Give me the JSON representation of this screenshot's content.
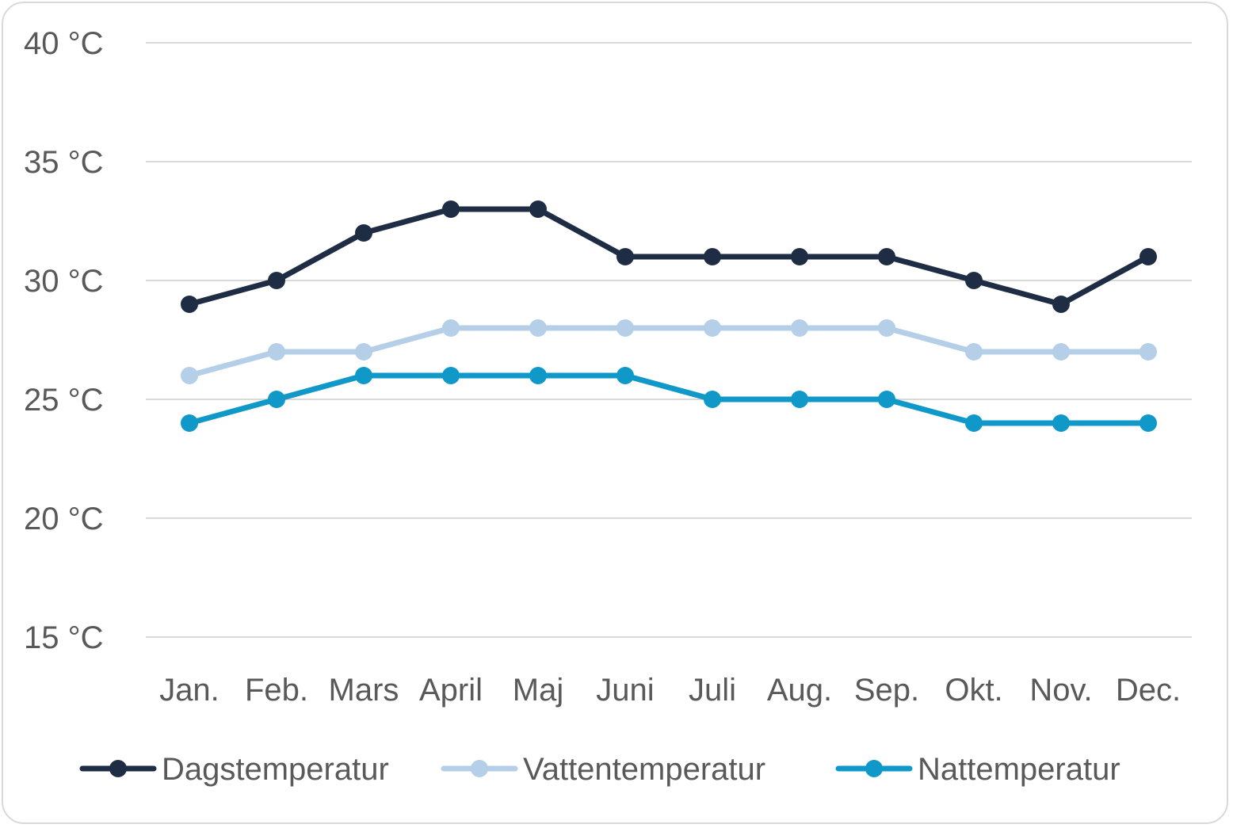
{
  "chart_data": {
    "type": "line",
    "title": "",
    "xlabel": "",
    "ylabel": "",
    "unit_suffix": " °C",
    "ylim": [
      15,
      40
    ],
    "yticks": [
      15,
      20,
      25,
      30,
      35,
      40
    ],
    "ytick_labels": [
      "15 °C",
      "20 °C",
      "25 °C",
      "30 °C",
      "35 °C",
      "40 °C"
    ],
    "grid": true,
    "legend_position": "bottom",
    "categories": [
      "Jan.",
      "Feb.",
      "Mars",
      "April",
      "Maj",
      "Juni",
      "Juli",
      "Aug.",
      "Sep.",
      "Okt.",
      "Nov.",
      "Dec."
    ],
    "series": [
      {
        "name": "Dagstemperatur",
        "color": "#1f2d44",
        "values": [
          29,
          30,
          32,
          33,
          33,
          31,
          31,
          31,
          31,
          30,
          29,
          31
        ]
      },
      {
        "name": "Vattentemperatur",
        "color": "#b4cfe7",
        "values": [
          26,
          27,
          27,
          28,
          28,
          28,
          28,
          28,
          28,
          27,
          27,
          27
        ]
      },
      {
        "name": "Nattemperatur",
        "color": "#0f98c8",
        "values": [
          24,
          25,
          26,
          26,
          26,
          26,
          25,
          25,
          25,
          24,
          24,
          24
        ]
      }
    ]
  }
}
